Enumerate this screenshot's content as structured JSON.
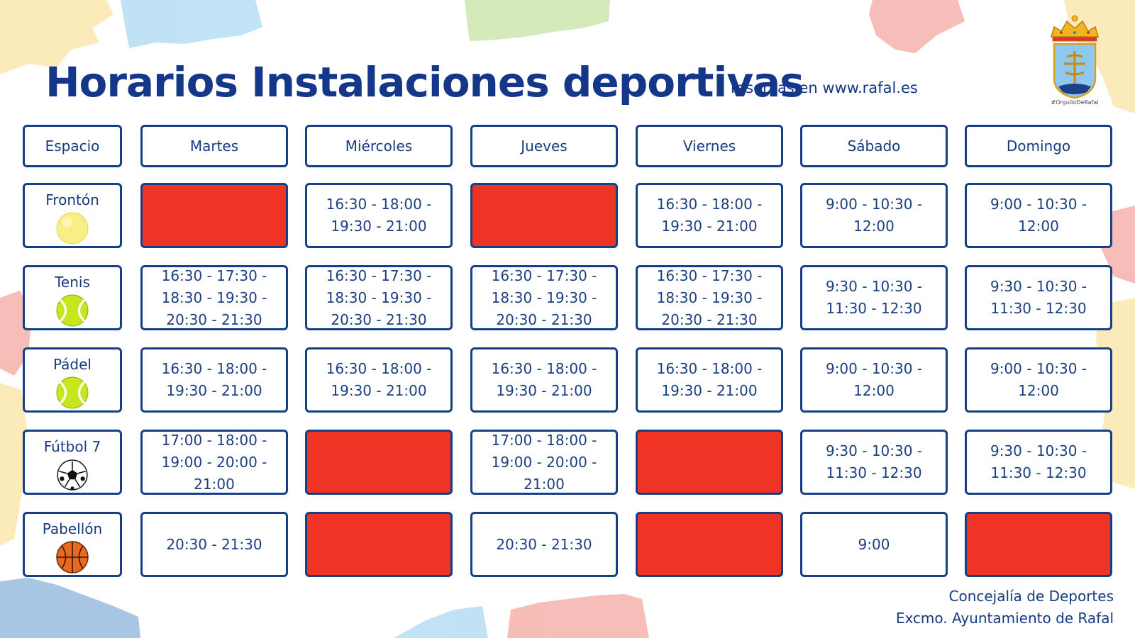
{
  "header": {
    "title": "Horarios Instalaciones deportivas",
    "subtitle": "reservas en www.rafal.es",
    "crest_caption": "#OrgulloDeRafal"
  },
  "table": {
    "corner_label": "Espacio",
    "days": [
      "Martes",
      "Miércoles",
      "Jueves",
      "Viernes",
      "Sábado",
      "Domingo"
    ],
    "closed_color": "#ef3324",
    "rows": [
      {
        "space": "Frontón",
        "icon": "fronton-ball-icon",
        "slots": [
          "",
          "16:30 - 18:00 -\n19:30 - 21:00",
          "",
          "16:30 - 18:00 -\n19:30 - 21:00",
          "9:00 - 10:30 -\n12:00",
          "9:00 - 10:30 -\n12:00"
        ]
      },
      {
        "space": "Tenis",
        "icon": "tennis-ball-icon",
        "slots": [
          "16:30 - 17:30 -\n18:30 - 19:30 -\n20:30 - 21:30",
          "16:30 - 17:30 -\n18:30 - 19:30 -\n20:30 - 21:30",
          "16:30 - 17:30 -\n18:30 - 19:30 -\n20:30 - 21:30",
          "16:30 - 17:30 -\n18:30 - 19:30 -\n20:30 - 21:30",
          "9:30 - 10:30 -\n11:30 - 12:30",
          "9:30 - 10:30 -\n11:30 - 12:30"
        ]
      },
      {
        "space": "Pádel",
        "icon": "padel-ball-icon",
        "slots": [
          "16:30 - 18:00 -\n19:30 - 21:00",
          "16:30 - 18:00 -\n19:30 - 21:00",
          "16:30 - 18:00 -\n19:30 - 21:00",
          "16:30 - 18:00 -\n19:30 - 21:00",
          "9:00 - 10:30 -\n12:00",
          "9:00 - 10:30 -\n12:00"
        ]
      },
      {
        "space": "Fútbol 7",
        "icon": "soccer-ball-icon",
        "slots": [
          "17:00 - 18:00 -\n19:00 - 20:00 -\n21:00",
          "",
          "17:00 - 18:00 -\n19:00 - 20:00 -\n21:00",
          "",
          "9:30 - 10:30 -\n11:30 - 12:30",
          "9:30 - 10:30 -\n11:30 - 12:30"
        ]
      },
      {
        "space": "Pabellón",
        "icon": "basketball-icon",
        "slots": [
          "20:30 - 21:30",
          "",
          "20:30 - 21:30",
          "",
          "9:00",
          ""
        ]
      }
    ]
  },
  "footer": {
    "line1": "Concejalía de Deportes",
    "line2": "Excmo. Ayuntamiento de Rafal"
  }
}
